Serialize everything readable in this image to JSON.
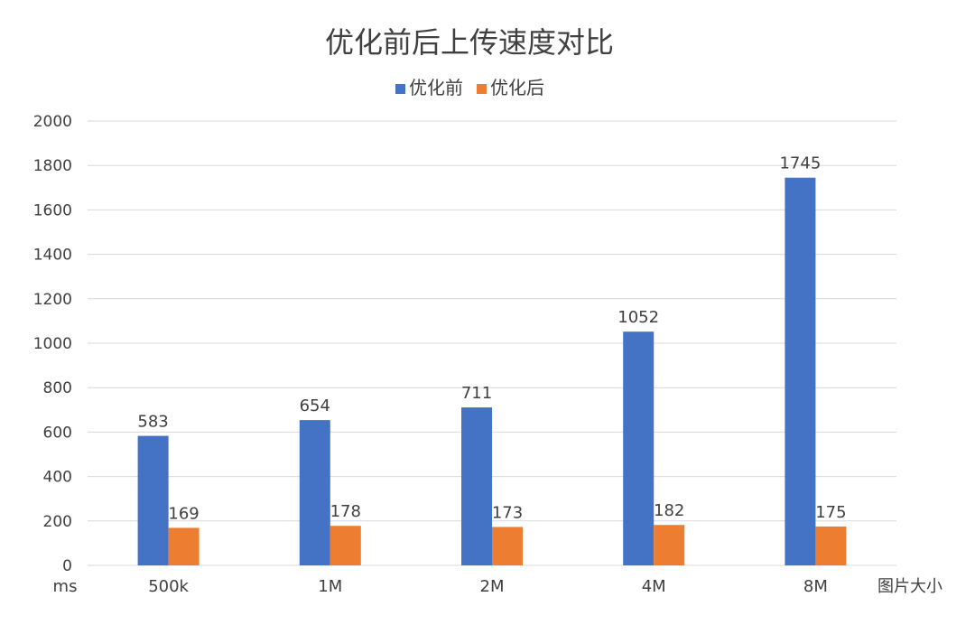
{
  "chart_data": {
    "type": "bar",
    "title": "优化前后上传速度对比",
    "xlabel": "图片大小",
    "ylabel": "ms",
    "categories": [
      "500k",
      "1M",
      "2M",
      "4M",
      "8M"
    ],
    "series": [
      {
        "name": "优化前",
        "values": [
          583,
          654,
          711,
          1052,
          1745
        ],
        "color": "#4472c4"
      },
      {
        "name": "优化后",
        "values": [
          169,
          178,
          173,
          182,
          175
        ],
        "color": "#ed7d31"
      }
    ],
    "ylim": [
      0,
      2000
    ],
    "yticks": [
      0,
      200,
      400,
      600,
      800,
      1000,
      1200,
      1400,
      1600,
      1800,
      2000
    ],
    "grid": true,
    "legend_position": "top"
  }
}
